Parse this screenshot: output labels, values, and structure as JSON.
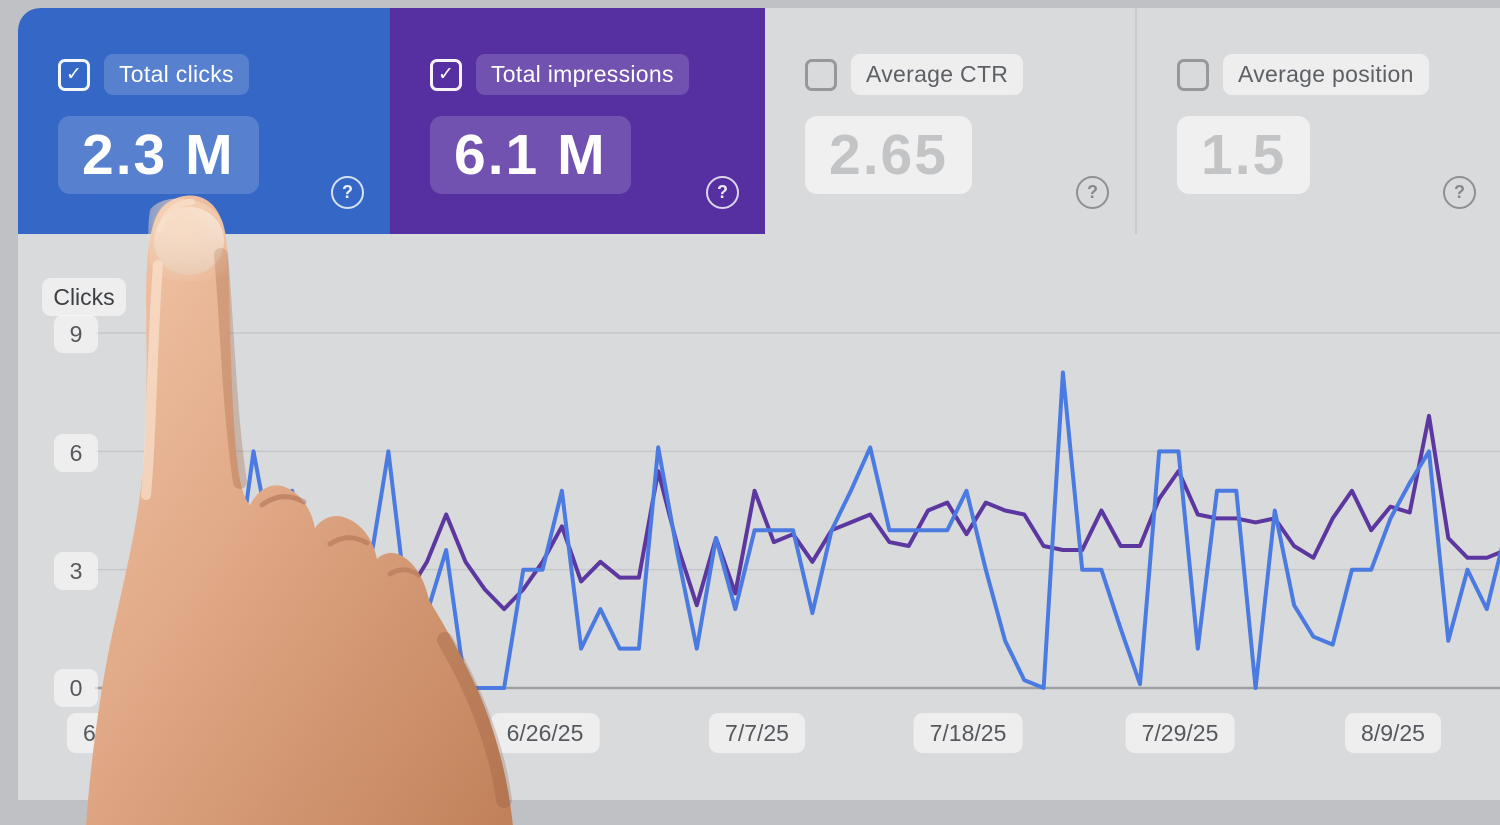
{
  "icons": {
    "check": "✓",
    "help": "?"
  },
  "cards": [
    {
      "id": "total-clicks",
      "label": "Total clicks",
      "value": "2.3 M",
      "checked": true,
      "bg": "#3568c6"
    },
    {
      "id": "total-impressions",
      "label": "Total impressions",
      "value": "6.1 M",
      "checked": true,
      "bg": "#5630a0"
    },
    {
      "id": "average-ctr",
      "label": "Average CTR",
      "value": "2.65",
      "checked": false,
      "bg": "none"
    },
    {
      "id": "average-position",
      "label": "Average position",
      "value": "1.5",
      "checked": false,
      "bg": "none"
    }
  ],
  "chart": {
    "ylabel": "Clicks",
    "y_tick_labels": [
      "9",
      "6",
      "3",
      "0"
    ],
    "x_tick_labels": [
      "6/4/25",
      "6/26/25",
      "7/7/25",
      "7/18/25",
      "7/29/25",
      "8/9/25"
    ]
  },
  "chart_data": {
    "type": "line",
    "ylabel": "Clicks",
    "y_ticks": [
      0,
      3,
      6,
      9
    ],
    "ylim": [
      0,
      9.5
    ],
    "x_tick_labels": [
      "6/4/25",
      "6/26/25",
      "7/7/25",
      "7/18/25",
      "7/29/25",
      "8/9/25"
    ],
    "cadence": "daily",
    "visible_range": {
      "start": "6/9/25",
      "end": "8/14/25"
    },
    "grid": "horizontal",
    "legend": "none",
    "series": [
      {
        "name": "Total clicks",
        "color": "#4b7be0",
        "values": [
          2.8,
          2.4,
          6.0,
          3.4,
          5.0,
          2.6,
          3.0,
          3.0,
          3.0,
          6.0,
          1.9,
          1.9,
          3.5,
          0.0,
          0.0,
          0.0,
          3.0,
          3.0,
          5.0,
          1.0,
          2.0,
          1.0,
          1.0,
          6.1,
          3.4,
          1.0,
          3.8,
          2.0,
          4.0,
          4.0,
          4.0,
          1.9,
          4.0,
          5.0,
          6.1,
          4.0,
          4.0,
          4.0,
          4.0,
          5.0,
          3.0,
          1.2,
          0.2,
          0.0,
          8.0,
          3.0,
          3.0,
          1.5,
          0.1,
          6.0,
          6.0,
          1.0,
          5.0,
          5.0,
          0.0,
          4.5,
          2.1,
          1.3,
          1.1,
          3.0,
          3.0,
          4.3,
          5.2,
          6.0,
          1.2,
          3.0,
          2.0,
          4.0
        ]
      },
      {
        "name": "Total impressions",
        "color": "#5c37a0",
        "values": [
          2.8,
          3.6,
          3.3,
          2.8,
          2.4,
          2.1,
          2.0,
          2.0,
          2.0,
          2.3,
          2.4,
          3.2,
          4.4,
          3.2,
          2.5,
          2.0,
          2.5,
          3.2,
          4.1,
          2.7,
          3.2,
          2.8,
          2.8,
          5.5,
          3.6,
          2.1,
          3.8,
          2.4,
          5.0,
          3.7,
          3.9,
          3.2,
          4.0,
          4.2,
          4.4,
          3.7,
          3.6,
          4.5,
          4.7,
          3.9,
          4.7,
          4.5,
          4.4,
          3.6,
          3.5,
          3.5,
          4.5,
          3.6,
          3.6,
          4.8,
          5.5,
          4.4,
          4.3,
          4.3,
          4.2,
          4.3,
          3.6,
          3.3,
          4.3,
          5.0,
          4.0,
          4.6,
          4.45,
          6.9,
          3.8,
          3.3,
          3.3,
          3.5
        ]
      }
    ]
  }
}
